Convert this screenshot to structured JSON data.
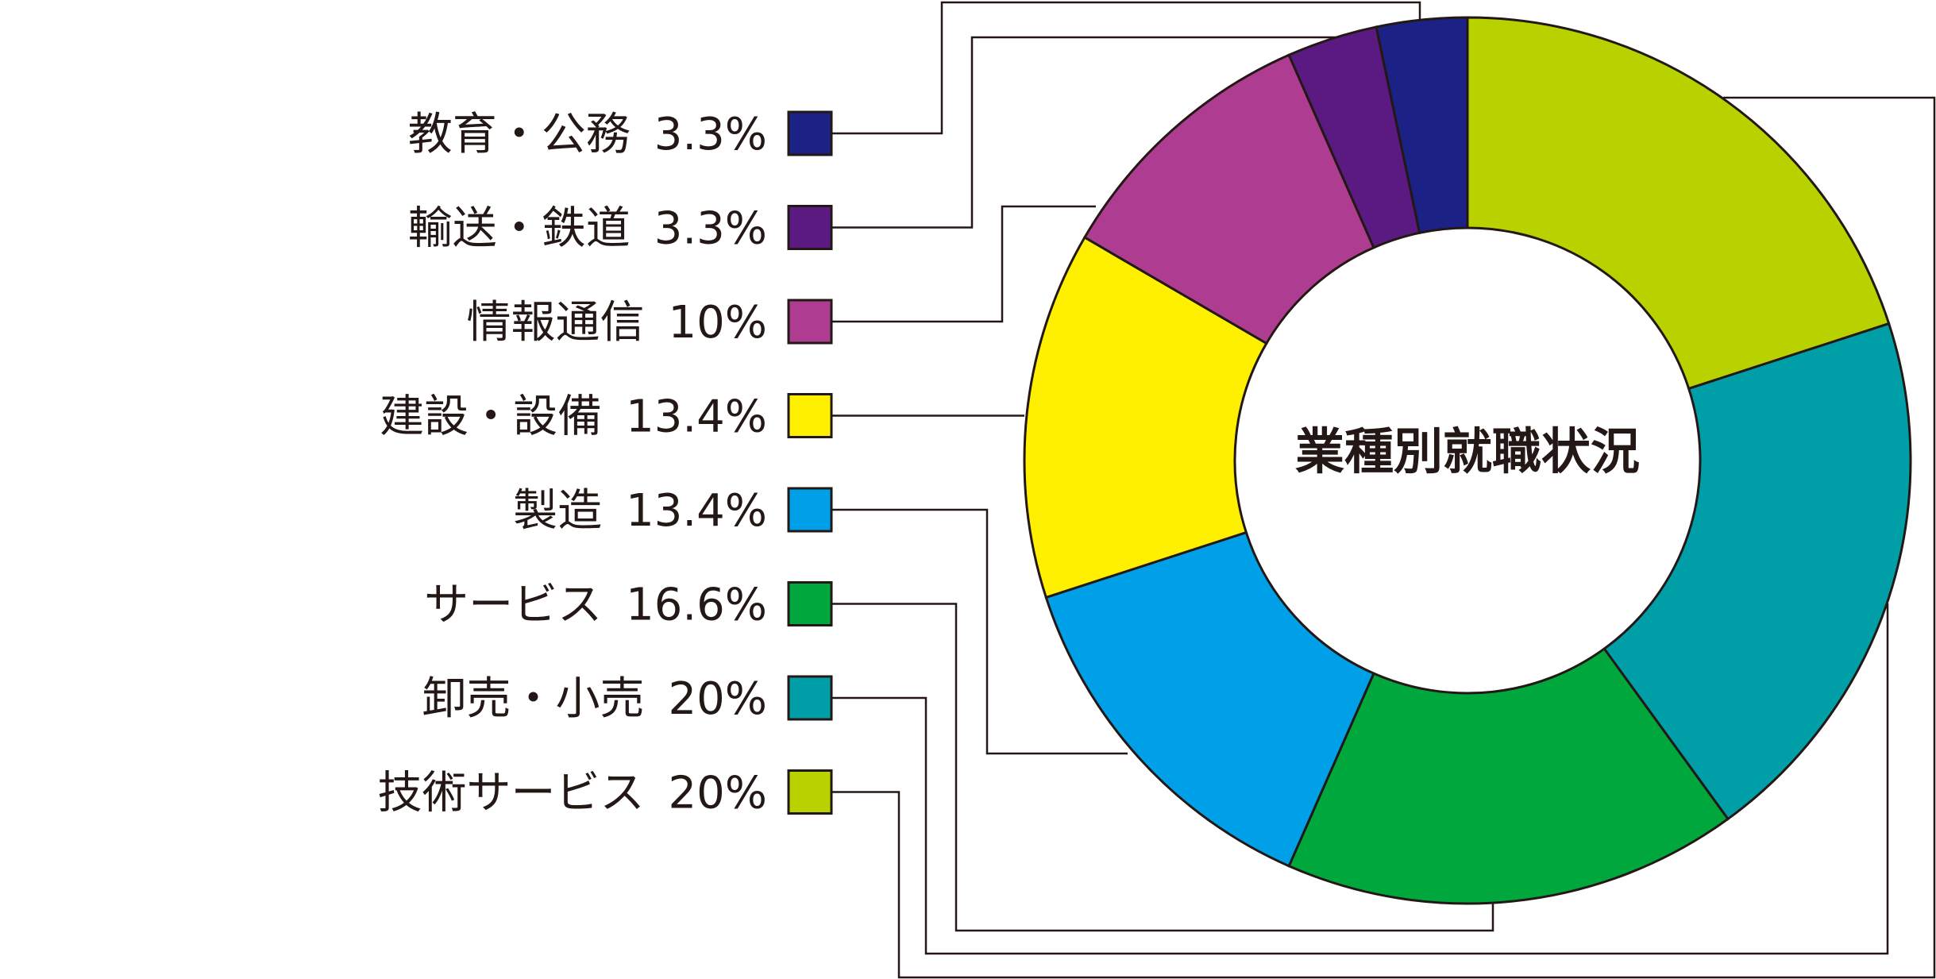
{
  "chart_data": {
    "type": "pie",
    "title": "業種別就職状況",
    "categories": [
      "技術サービス",
      "卸売・小売",
      "サービス",
      "製造",
      "建設・設備",
      "情報通信",
      "輸送・鉄道",
      "教育・公務"
    ],
    "value_labels": [
      "20%",
      "20%",
      "16.6%",
      "13.4%",
      "13.4%",
      "10%",
      "3.3%",
      "3.3%"
    ],
    "values": [
      20,
      20,
      16.6,
      13.4,
      13.4,
      10,
      3.3,
      3.3
    ],
    "colors": [
      "#b8d200",
      "#009fa8",
      "#00a73c",
      "#00a0e9",
      "#fff000",
      "#ae3d91",
      "#5a1a82",
      "#1c2186"
    ],
    "legend_order": [
      "教育・公務",
      "輸送・鉄道",
      "情報通信",
      "建設・設備",
      "製造",
      "サービス",
      "卸売・小売",
      "技術サービス"
    ],
    "legend_placement": "left",
    "donut": true
  }
}
